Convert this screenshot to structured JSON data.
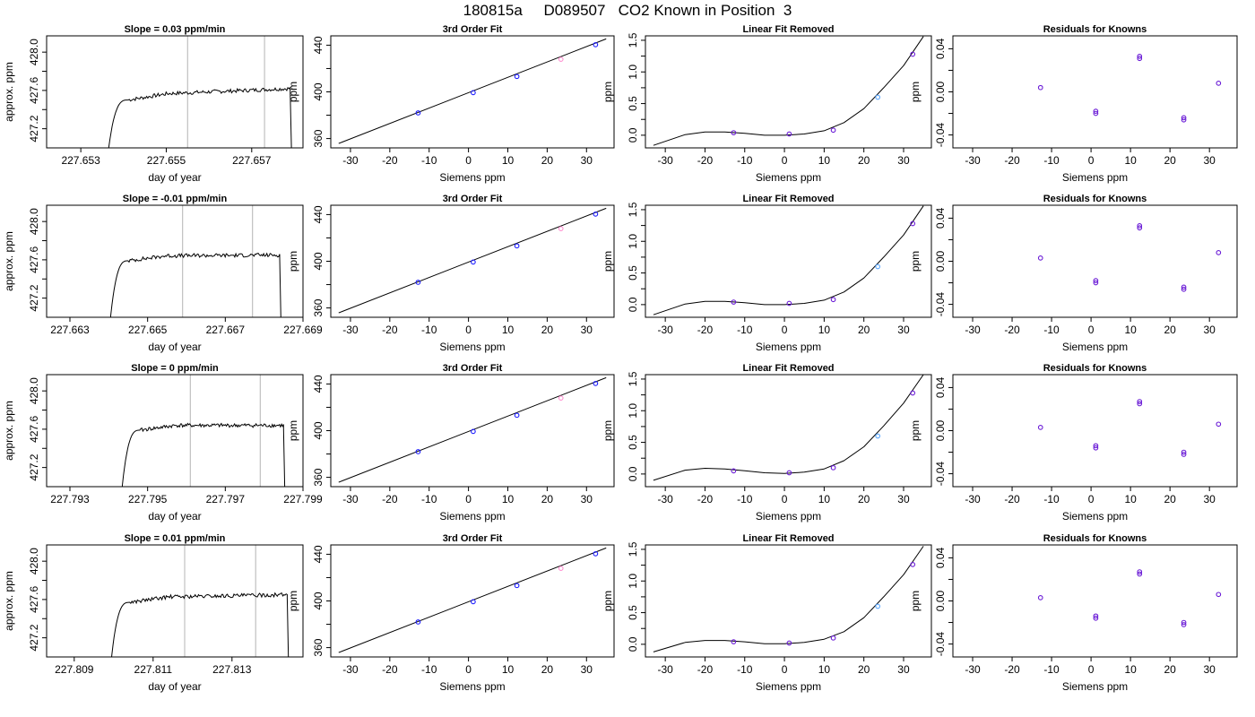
{
  "figure": {
    "title_parts": [
      "180815a",
      "D089507",
      "CO2 Known in Position  3"
    ]
  },
  "panel_titles": {
    "fit": "3rd Order Fit",
    "linear_removed": "Linear Fit Removed",
    "residuals": "Residuals for Knowns"
  },
  "axis_labels": {
    "time_x": "day of year",
    "time_y": "approx. ppm",
    "siemens_x": "Siemens ppm",
    "ppm_y": "ppm"
  },
  "colors": {
    "line": "#000000",
    "window_lines": "#c0c0c0",
    "point_blue": "#1e1eff",
    "point_magenta": "#ff00ff",
    "point_purple": "#6a1bd6",
    "point_light_blue": "#58a6ff",
    "point_pink": "#ff8fd0"
  },
  "chart_data": [
    {
      "type": "line",
      "row": 1,
      "title": "Slope =  0.03  ppm/min",
      "xlabel": "day of year",
      "ylabel": "approx. ppm",
      "xlim": [
        227.6522,
        227.6582
      ],
      "ylim": [
        427.0,
        428.17
      ],
      "xticks": [
        227.653,
        227.655,
        227.657
      ],
      "yticks": [
        427.2,
        427.6,
        428.0
      ],
      "window_lines": [
        227.6555,
        227.6573
      ],
      "trace": {
        "start": 227.6536,
        "rise_end": 227.6541,
        "end": 227.6579,
        "base": 426.8,
        "plateau": 427.55,
        "drift": 0.07,
        "fall": 427.0
      }
    },
    {
      "type": "line",
      "row": 2,
      "title": "Slope =  -0.01  ppm/min",
      "xlabel": "day of year",
      "ylabel": "approx. ppm",
      "xlim": [
        227.6624,
        227.669
      ],
      "ylim": [
        427.0,
        428.17
      ],
      "xticks": [
        227.663,
        227.665,
        227.667,
        227.669
      ],
      "yticks": [
        427.2,
        427.6,
        428.0
      ],
      "window_lines": [
        227.6659,
        227.6677
      ],
      "trace": {
        "start": 227.664,
        "rise_end": 227.6645,
        "end": 227.6684,
        "base": 426.8,
        "plateau": 427.64,
        "drift": 0.01,
        "fall": 427.0
      }
    },
    {
      "type": "line",
      "row": 3,
      "title": "Slope =  0  ppm/min",
      "xlabel": "day of year",
      "ylabel": "approx. ppm",
      "xlim": [
        227.7924,
        227.799
      ],
      "ylim": [
        427.0,
        428.17
      ],
      "xticks": [
        227.793,
        227.795,
        227.797,
        227.799
      ],
      "yticks": [
        427.2,
        427.6,
        428.0
      ],
      "window_lines": [
        227.7961,
        227.7979
      ],
      "trace": {
        "start": 227.7943,
        "rise_end": 227.7948,
        "end": 227.7985,
        "base": 426.8,
        "plateau": 427.64,
        "drift": 0.0,
        "fall": 427.0
      }
    },
    {
      "type": "line",
      "row": 4,
      "title": "Slope =  0.01  ppm/min",
      "xlabel": "day of year",
      "ylabel": "approx. ppm",
      "xlim": [
        227.8083,
        227.8148
      ],
      "ylim": [
        427.0,
        428.17
      ],
      "xticks": [
        227.809,
        227.811,
        227.813
      ],
      "yticks": [
        427.2,
        427.6,
        428.0
      ],
      "window_lines": [
        227.8118,
        227.8136
      ],
      "trace": {
        "start": 227.8099,
        "rise_end": 227.8104,
        "end": 227.8144,
        "base": 426.8,
        "plateau": 427.62,
        "drift": 0.03,
        "fall": 427.0
      }
    },
    {
      "type": "scatter",
      "row": 1,
      "title": "3rd Order Fit",
      "xlabel": "Siemens ppm",
      "ylabel": "ppm",
      "xlim": [
        -35,
        37
      ],
      "ylim": [
        352,
        448
      ],
      "xticks": [
        -30,
        -20,
        -10,
        0,
        10,
        20,
        30
      ],
      "yticks": [
        360,
        400,
        440
      ],
      "fit_line": {
        "x": [
          -33,
          35
        ],
        "y": [
          355.8,
          445.4
        ]
      },
      "points": [
        {
          "x": -12.8,
          "y": 382.0,
          "color": "#1e1eff"
        },
        {
          "x": 1.2,
          "y": 399.3,
          "color": "#1e1eff"
        },
        {
          "x": 12.3,
          "y": 413.2,
          "color": "#1e1eff"
        },
        {
          "x": 23.5,
          "y": 427.9,
          "color": "#ff8fd0"
        },
        {
          "x": 32.3,
          "y": 440.4,
          "color": "#1e1eff"
        }
      ]
    },
    {
      "type": "scatter",
      "row": 2,
      "title": "3rd Order Fit",
      "xlabel": "Siemens ppm",
      "ylabel": "ppm",
      "xlim": [
        -35,
        37
      ],
      "ylim": [
        352,
        448
      ],
      "xticks": [
        -30,
        -20,
        -10,
        0,
        10,
        20,
        30
      ],
      "yticks": [
        360,
        400,
        440
      ],
      "fit_line": {
        "x": [
          -33,
          35
        ],
        "y": [
          355.8,
          445.4
        ]
      },
      "points": [
        {
          "x": -12.8,
          "y": 382.0,
          "color": "#1e1eff"
        },
        {
          "x": 1.2,
          "y": 399.3,
          "color": "#1e1eff"
        },
        {
          "x": 12.3,
          "y": 413.2,
          "color": "#1e1eff"
        },
        {
          "x": 23.5,
          "y": 427.9,
          "color": "#ff8fd0"
        },
        {
          "x": 32.3,
          "y": 440.4,
          "color": "#1e1eff"
        }
      ]
    },
    {
      "type": "scatter",
      "row": 3,
      "title": "3rd Order Fit",
      "xlabel": "Siemens ppm",
      "ylabel": "ppm",
      "xlim": [
        -35,
        37
      ],
      "ylim": [
        352,
        448
      ],
      "xticks": [
        -30,
        -20,
        -10,
        0,
        10,
        20,
        30
      ],
      "yticks": [
        360,
        400,
        440
      ],
      "fit_line": {
        "x": [
          -33,
          35
        ],
        "y": [
          355.8,
          445.4
        ]
      },
      "points": [
        {
          "x": -12.8,
          "y": 382.0,
          "color": "#1e1eff"
        },
        {
          "x": 1.2,
          "y": 399.3,
          "color": "#1e1eff"
        },
        {
          "x": 12.3,
          "y": 413.2,
          "color": "#1e1eff"
        },
        {
          "x": 23.5,
          "y": 427.9,
          "color": "#ff8fd0"
        },
        {
          "x": 32.3,
          "y": 440.4,
          "color": "#1e1eff"
        }
      ]
    },
    {
      "type": "scatter",
      "row": 4,
      "title": "3rd Order Fit",
      "xlabel": "Siemens ppm",
      "ylabel": "ppm",
      "xlim": [
        -35,
        37
      ],
      "ylim": [
        352,
        448
      ],
      "xticks": [
        -30,
        -20,
        -10,
        0,
        10,
        20,
        30
      ],
      "yticks": [
        360,
        400,
        440
      ],
      "fit_line": {
        "x": [
          -33,
          35
        ],
        "y": [
          355.8,
          445.4
        ]
      },
      "points": [
        {
          "x": -12.8,
          "y": 382.0,
          "color": "#1e1eff"
        },
        {
          "x": 1.2,
          "y": 399.3,
          "color": "#1e1eff"
        },
        {
          "x": 12.3,
          "y": 413.2,
          "color": "#1e1eff"
        },
        {
          "x": 23.5,
          "y": 427.9,
          "color": "#ff8fd0"
        },
        {
          "x": 32.3,
          "y": 440.4,
          "color": "#1e1eff"
        }
      ]
    },
    {
      "type": "scatter",
      "row": 1,
      "title": "Linear Fit Removed",
      "xlabel": "Siemens ppm",
      "ylabel": "ppm",
      "xlim": [
        -35,
        37
      ],
      "ylim": [
        -0.2,
        1.57
      ],
      "xticks": [
        -30,
        -20,
        -10,
        0,
        10,
        20,
        30
      ],
      "yticks": [
        0.0,
        0.5,
        1.0,
        1.5
      ],
      "curve": {
        "x": [
          -33,
          -25,
          -20,
          -15,
          -10,
          -5,
          0,
          5,
          10,
          15,
          20,
          25,
          30,
          35
        ],
        "y": [
          -0.16,
          0.01,
          0.05,
          0.05,
          0.03,
          0.0,
          0.0,
          0.02,
          0.07,
          0.2,
          0.42,
          0.75,
          1.1,
          1.56
        ]
      },
      "points": [
        {
          "x": -12.8,
          "y": 0.04,
          "color": "#6a1bd6"
        },
        {
          "x": 1.2,
          "y": 0.02,
          "color": "#6a1bd6"
        },
        {
          "x": 12.3,
          "y": 0.08,
          "color": "#6a1bd6"
        },
        {
          "x": 23.5,
          "y": 0.6,
          "color": "#58a6ff"
        },
        {
          "x": 32.3,
          "y": 1.28,
          "color": "#6a1bd6"
        }
      ]
    },
    {
      "type": "scatter",
      "row": 2,
      "title": "Linear Fit Removed",
      "xlabel": "Siemens ppm",
      "ylabel": "ppm",
      "xlim": [
        -35,
        37
      ],
      "ylim": [
        -0.2,
        1.57
      ],
      "xticks": [
        -30,
        -20,
        -10,
        0,
        10,
        20,
        30
      ],
      "yticks": [
        0.0,
        0.5,
        1.0,
        1.5
      ],
      "curve": {
        "x": [
          -33,
          -25,
          -20,
          -15,
          -10,
          -5,
          0,
          5,
          10,
          15,
          20,
          25,
          30,
          35
        ],
        "y": [
          -0.16,
          0.01,
          0.05,
          0.05,
          0.03,
          0.0,
          0.0,
          0.02,
          0.07,
          0.2,
          0.42,
          0.75,
          1.1,
          1.56
        ]
      },
      "points": [
        {
          "x": -12.8,
          "y": 0.04,
          "color": "#6a1bd6"
        },
        {
          "x": 1.2,
          "y": 0.02,
          "color": "#6a1bd6"
        },
        {
          "x": 12.3,
          "y": 0.08,
          "color": "#6a1bd6"
        },
        {
          "x": 23.5,
          "y": 0.6,
          "color": "#58a6ff"
        },
        {
          "x": 32.3,
          "y": 1.28,
          "color": "#6a1bd6"
        }
      ]
    },
    {
      "type": "scatter",
      "row": 3,
      "title": "Linear Fit Removed",
      "xlabel": "Siemens ppm",
      "ylabel": "ppm",
      "xlim": [
        -35,
        37
      ],
      "ylim": [
        -0.2,
        1.57
      ],
      "xticks": [
        -30,
        -20,
        -10,
        0,
        10,
        20,
        30
      ],
      "yticks": [
        0.0,
        0.5,
        1.0,
        1.5
      ],
      "curve": {
        "x": [
          -33,
          -25,
          -20,
          -15,
          -10,
          -5,
          0,
          5,
          10,
          15,
          20,
          25,
          30,
          35
        ],
        "y": [
          -0.1,
          0.06,
          0.09,
          0.08,
          0.05,
          0.02,
          0.01,
          0.03,
          0.08,
          0.21,
          0.43,
          0.76,
          1.12,
          1.57
        ]
      },
      "points": [
        {
          "x": -12.8,
          "y": 0.05,
          "color": "#6a1bd6"
        },
        {
          "x": 1.2,
          "y": 0.02,
          "color": "#6a1bd6"
        },
        {
          "x": 12.3,
          "y": 0.1,
          "color": "#6a1bd6"
        },
        {
          "x": 23.5,
          "y": 0.6,
          "color": "#58a6ff"
        },
        {
          "x": 32.3,
          "y": 1.28,
          "color": "#6a1bd6"
        }
      ]
    },
    {
      "type": "scatter",
      "row": 4,
      "title": "Linear Fit Removed",
      "xlabel": "Siemens ppm",
      "ylabel": "ppm",
      "xlim": [
        -35,
        37
      ],
      "ylim": [
        -0.2,
        1.57
      ],
      "xticks": [
        -30,
        -20,
        -10,
        0,
        10,
        20,
        30
      ],
      "yticks": [
        0.0,
        0.5,
        1.0,
        1.5
      ],
      "curve": {
        "x": [
          -33,
          -25,
          -20,
          -15,
          -10,
          -5,
          0,
          5,
          10,
          15,
          20,
          25,
          30,
          35
        ],
        "y": [
          -0.12,
          0.03,
          0.06,
          0.06,
          0.04,
          0.01,
          0.01,
          0.03,
          0.08,
          0.2,
          0.42,
          0.75,
          1.1,
          1.55
        ]
      },
      "points": [
        {
          "x": -12.8,
          "y": 0.04,
          "color": "#6a1bd6"
        },
        {
          "x": 1.2,
          "y": 0.02,
          "color": "#6a1bd6"
        },
        {
          "x": 12.3,
          "y": 0.1,
          "color": "#6a1bd6"
        },
        {
          "x": 23.5,
          "y": 0.6,
          "color": "#58a6ff"
        },
        {
          "x": 32.3,
          "y": 1.26,
          "color": "#6a1bd6"
        }
      ]
    },
    {
      "type": "scatter",
      "row": 1,
      "title": "Residuals for Knowns",
      "xlabel": "Siemens ppm",
      "ylabel": "ppm",
      "xlim": [
        -35,
        37
      ],
      "ylim": [
        -0.052,
        0.052
      ],
      "xticks": [
        -30,
        -20,
        -10,
        0,
        10,
        20,
        30
      ],
      "yticks": [
        -0.04,
        0.0,
        0.04
      ],
      "points": [
        {
          "x": -12.8,
          "y": 0.004,
          "color": "#6a1bd6"
        },
        {
          "x": 1.2,
          "y": -0.018,
          "color": "#6a1bd6"
        },
        {
          "x": 1.2,
          "y": -0.02,
          "color": "#6a1bd6"
        },
        {
          "x": 12.3,
          "y": 0.033,
          "color": "#6a1bd6"
        },
        {
          "x": 12.3,
          "y": 0.031,
          "color": "#6a1bd6"
        },
        {
          "x": 23.5,
          "y": -0.024,
          "color": "#6a1bd6"
        },
        {
          "x": 23.5,
          "y": -0.026,
          "color": "#6a1bd6"
        },
        {
          "x": 32.3,
          "y": 0.008,
          "color": "#6a1bd6"
        }
      ]
    },
    {
      "type": "scatter",
      "row": 2,
      "title": "Residuals for Knowns",
      "xlabel": "Siemens ppm",
      "ylabel": "ppm",
      "xlim": [
        -35,
        37
      ],
      "ylim": [
        -0.052,
        0.052
      ],
      "xticks": [
        -30,
        -20,
        -10,
        0,
        10,
        20,
        30
      ],
      "yticks": [
        -0.04,
        0.0,
        0.04
      ],
      "points": [
        {
          "x": -12.8,
          "y": 0.003,
          "color": "#6a1bd6"
        },
        {
          "x": 1.2,
          "y": -0.018,
          "color": "#6a1bd6"
        },
        {
          "x": 1.2,
          "y": -0.02,
          "color": "#6a1bd6"
        },
        {
          "x": 12.3,
          "y": 0.033,
          "color": "#6a1bd6"
        },
        {
          "x": 12.3,
          "y": 0.031,
          "color": "#6a1bd6"
        },
        {
          "x": 23.5,
          "y": -0.024,
          "color": "#6a1bd6"
        },
        {
          "x": 23.5,
          "y": -0.026,
          "color": "#6a1bd6"
        },
        {
          "x": 32.3,
          "y": 0.008,
          "color": "#6a1bd6"
        }
      ]
    },
    {
      "type": "scatter",
      "row": 3,
      "title": "Residuals for Knowns",
      "xlabel": "Siemens ppm",
      "ylabel": "ppm",
      "xlim": [
        -35,
        37
      ],
      "ylim": [
        -0.052,
        0.052
      ],
      "xticks": [
        -30,
        -20,
        -10,
        0,
        10,
        20,
        30
      ],
      "yticks": [
        -0.04,
        0.0,
        0.04
      ],
      "points": [
        {
          "x": -12.8,
          "y": 0.003,
          "color": "#6a1bd6"
        },
        {
          "x": 1.2,
          "y": -0.014,
          "color": "#6a1bd6"
        },
        {
          "x": 1.2,
          "y": -0.016,
          "color": "#6a1bd6"
        },
        {
          "x": 12.3,
          "y": 0.027,
          "color": "#6a1bd6"
        },
        {
          "x": 12.3,
          "y": 0.025,
          "color": "#6a1bd6"
        },
        {
          "x": 23.5,
          "y": -0.02,
          "color": "#6a1bd6"
        },
        {
          "x": 23.5,
          "y": -0.022,
          "color": "#6a1bd6"
        },
        {
          "x": 32.3,
          "y": 0.006,
          "color": "#6a1bd6"
        }
      ]
    },
    {
      "type": "scatter",
      "row": 4,
      "title": "Residuals for Knowns",
      "xlabel": "Siemens ppm",
      "ylabel": "ppm",
      "xlim": [
        -35,
        37
      ],
      "ylim": [
        -0.052,
        0.052
      ],
      "xticks": [
        -30,
        -20,
        -10,
        0,
        10,
        20,
        30
      ],
      "yticks": [
        -0.04,
        0.0,
        0.04
      ],
      "points": [
        {
          "x": -12.8,
          "y": 0.003,
          "color": "#6a1bd6"
        },
        {
          "x": 1.2,
          "y": -0.014,
          "color": "#6a1bd6"
        },
        {
          "x": 1.2,
          "y": -0.016,
          "color": "#6a1bd6"
        },
        {
          "x": 12.3,
          "y": 0.027,
          "color": "#6a1bd6"
        },
        {
          "x": 12.3,
          "y": 0.025,
          "color": "#6a1bd6"
        },
        {
          "x": 23.5,
          "y": -0.02,
          "color": "#6a1bd6"
        },
        {
          "x": 23.5,
          "y": -0.022,
          "color": "#6a1bd6"
        },
        {
          "x": 32.3,
          "y": 0.006,
          "color": "#6a1bd6"
        }
      ]
    }
  ]
}
